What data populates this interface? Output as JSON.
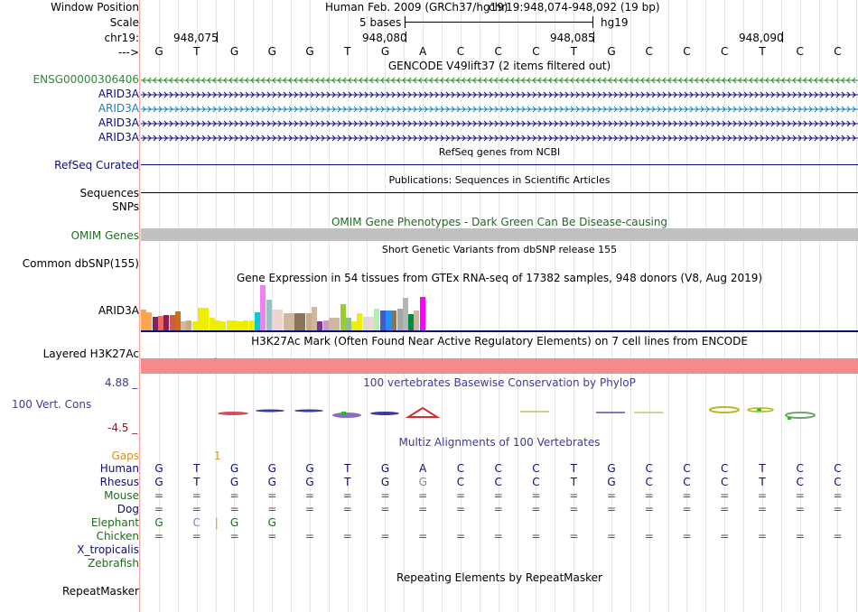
{
  "header": {
    "window_position_label": "Window Position",
    "scale_label": "Scale",
    "chrom_label": "chr19:",
    "strand_label": "--->",
    "assembly_text": "Human Feb. 2009 (GRCh37/hg19)",
    "position_text": "chr19:948,074-948,092 (19 bp)",
    "scale_text": "5 bases",
    "db_text": "hg19",
    "ticks": [
      "948,075",
      "948,080",
      "948,085",
      "948,090"
    ]
  },
  "sequence": [
    "G",
    "T",
    "G",
    "G",
    "G",
    "T",
    "G",
    "A",
    "C",
    "C",
    "C",
    "T",
    "G",
    "C",
    "C",
    "C",
    "T",
    "C",
    "C"
  ],
  "gencode": {
    "title": "GENCODE V49lift37 (2 items filtered out)",
    "items": [
      {
        "label": "ENSG00000306406",
        "color": "#2e8b2e",
        "direction": "left"
      },
      {
        "label": "ARID3A",
        "color": "#0c0c78",
        "direction": "right"
      },
      {
        "label": "ARID3A",
        "color": "#1a7fb8",
        "direction": "right"
      },
      {
        "label": "ARID3A",
        "color": "#0c0c78",
        "direction": "right"
      },
      {
        "label": "ARID3A",
        "color": "#0c0c78",
        "direction": "right"
      }
    ]
  },
  "refseq": {
    "title": "RefSeq genes from NCBI",
    "label": "RefSeq Curated",
    "color": "#0c0c78"
  },
  "publications": {
    "title": "Publications: Sequences in Scientific Articles",
    "label": "Sequences"
  },
  "snps_label": "SNPs",
  "omim": {
    "title": "OMIM Gene Phenotypes - Dark Green Can Be Disease-causing",
    "label": "OMIM Genes",
    "color": "#1e6b1e",
    "bar_color": "#c0c0c0"
  },
  "dbsnp": {
    "title": "Short Genetic Variants from dbSNP release 155",
    "label": "Common dbSNP(155)"
  },
  "gtex": {
    "title": "Gene Expression in 54 tissues from GTEx RNA-seq of 17382 samples, 948 donors (V8, Aug 2019)",
    "label": "ARID3A",
    "baseline_color": "#0c0c78",
    "bars": [
      {
        "h": 0.45,
        "c": "#ffa54f"
      },
      {
        "h": 0.4,
        "c": "#ffa54f"
      },
      {
        "h": 0.3,
        "c": "#8b1c62"
      },
      {
        "h": 0.32,
        "c": "#ee6a50"
      },
      {
        "h": 0.34,
        "c": "#8b1c62"
      },
      {
        "h": 0.33,
        "c": "#cd5b45"
      },
      {
        "h": 0.42,
        "c": "#d2691e"
      },
      {
        "h": 0.2,
        "c": "#cdb79e"
      },
      {
        "h": 0.22,
        "c": "#cdaa7d"
      },
      {
        "h": 0.2,
        "c": "#eeee00"
      },
      {
        "h": 0.5,
        "c": "#eeee00"
      },
      {
        "h": 0.5,
        "c": "#eeee00"
      },
      {
        "h": 0.28,
        "c": "#eeee00"
      },
      {
        "h": 0.22,
        "c": "#eeee00"
      },
      {
        "h": 0.2,
        "c": "#eeee00"
      },
      {
        "h": 0.22,
        "c": "#eeee00"
      },
      {
        "h": 0.22,
        "c": "#eeee00"
      },
      {
        "h": 0.2,
        "c": "#eeee00"
      },
      {
        "h": 0.22,
        "c": "#eeee00"
      },
      {
        "h": 0.22,
        "c": "#eeee00"
      },
      {
        "h": 0.4,
        "c": "#00cdcd"
      },
      {
        "h": 1.0,
        "c": "#ee82ee"
      },
      {
        "h": 0.68,
        "c": "#9ac0cd"
      },
      {
        "h": 0.46,
        "c": "#eed5d2"
      },
      {
        "h": 0.46,
        "c": "#eed5d2"
      },
      {
        "h": 0.38,
        "c": "#cdb79e"
      },
      {
        "h": 0.38,
        "c": "#cdb79e"
      },
      {
        "h": 0.38,
        "c": "#8b7355"
      },
      {
        "h": 0.38,
        "c": "#8b7355"
      },
      {
        "h": 0.38,
        "c": "#cdaa7d"
      },
      {
        "h": 0.52,
        "c": "#cdb79e"
      },
      {
        "h": 0.2,
        "c": "#7a378b"
      },
      {
        "h": 0.22,
        "c": "#cd96cd"
      },
      {
        "h": 0.28,
        "c": "#cdb79e"
      },
      {
        "h": 0.28,
        "c": "#cdb79e"
      },
      {
        "h": 0.58,
        "c": "#9acd32"
      },
      {
        "h": 0.28,
        "c": "#8fbc8f"
      },
      {
        "h": 0.2,
        "c": "#eeee00"
      },
      {
        "h": 0.38,
        "c": "#eeee00"
      },
      {
        "h": 0.3,
        "c": "#d9d9d9"
      },
      {
        "h": 0.3,
        "c": "#eed5d2"
      },
      {
        "h": 0.48,
        "c": "#b4eeb4"
      },
      {
        "h": 0.44,
        "c": "#3a5fcd"
      },
      {
        "h": 0.44,
        "c": "#1e90ff"
      },
      {
        "h": 0.44,
        "c": "#8b7355"
      },
      {
        "h": 0.48,
        "c": "#a6a6a6"
      },
      {
        "h": 0.72,
        "c": "#b5b5b5"
      },
      {
        "h": 0.36,
        "c": "#008b45"
      },
      {
        "h": 0.44,
        "c": "#cdb79e"
      },
      {
        "h": 0.74,
        "c": "#ff00ff"
      }
    ]
  },
  "h3k27ac": {
    "title": "H3K27Ac Mark (Often Found Near Active Regulatory Elements) on 7 cell lines from ENCODE",
    "label": "Layered H3K27Ac",
    "fill_color": "#f48a8a"
  },
  "phylop": {
    "title": "100 vertebrates Basewise Conservation by PhyloP",
    "label": "100 Vert. Cons",
    "max_label": "4.88 _",
    "min_label": "-4.5 _",
    "color": "#3a3aa0",
    "min_color": "#8b1a1a"
  },
  "multiz": {
    "title": "Multiz Alignments of 100 Vertebrates",
    "gaps": {
      "label": "Gaps",
      "value": "1",
      "color": "#d89020"
    },
    "species": [
      {
        "label": "Human",
        "color": "#0c0c78",
        "bases": "GTGGGTGACCCTGCCCTCC"
      },
      {
        "label": "Rhesus",
        "color": "#0c0c78",
        "bases": "GTGGGTGGCCCTGCCCTCC"
      },
      {
        "label": "Mouse",
        "color": "#1e6b1e",
        "bases": "==================="
      },
      {
        "label": "Dog",
        "color": "#0c0c78",
        "bases": "==================="
      },
      {
        "label": "Elephant",
        "color": "#1e6b1e",
        "bases": "GC|GG"
      },
      {
        "label": "Chicken",
        "color": "#1e6b1e",
        "bases": "==================="
      },
      {
        "label": "X_tropicalis",
        "color": "#0c0c78",
        "bases": ""
      },
      {
        "label": "Zebrafish",
        "color": "#1e6b1e",
        "bases": ""
      }
    ]
  },
  "repeatmasker": {
    "title": "Repeating Elements by RepeatMasker",
    "label": "RepeatMasker"
  }
}
